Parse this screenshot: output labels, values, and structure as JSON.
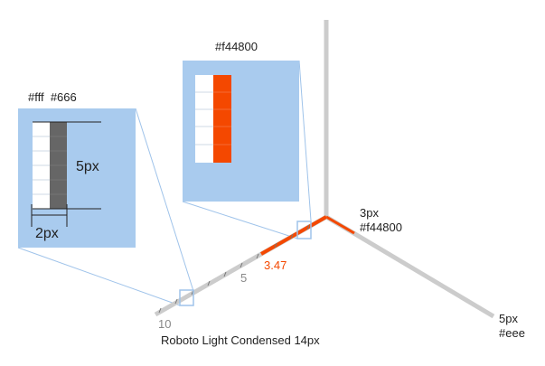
{
  "colors": {
    "panel_fill": "#a9cbee",
    "panel_line": "#9fc3ea",
    "axis_gray": "#cccccc",
    "accent": "#f44800",
    "dark_segment": "#666666",
    "white_segment": "#ffffff",
    "tick_mark": "#777777",
    "tick_label": "#888888"
  },
  "labels": {
    "left_panel_colors": "#fff  #666",
    "right_panel_color": "#f44800",
    "height_measure": "5px",
    "width_measure": "2px",
    "accent_stroke_size": "3px",
    "accent_stroke_color": "#f44800",
    "gray_stroke_size": "5px",
    "gray_stroke_color": "#eee",
    "font_note": "Roboto Light Condensed 14px"
  },
  "ticks": {
    "label_10": "10",
    "label_5": "5",
    "label_value": "3.47"
  }
}
